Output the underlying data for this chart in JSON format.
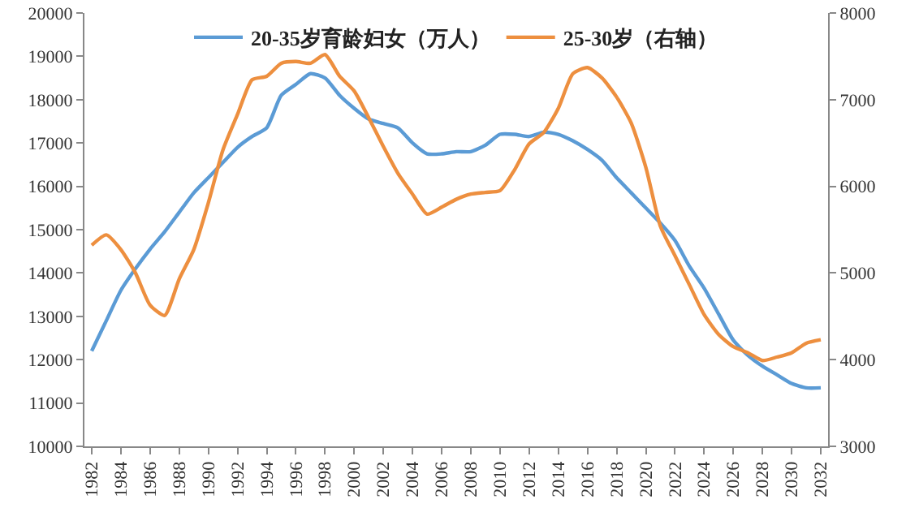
{
  "chart_data": {
    "type": "line",
    "x": [
      1982,
      1983,
      1984,
      1985,
      1986,
      1987,
      1988,
      1989,
      1990,
      1991,
      1992,
      1993,
      1994,
      1995,
      1996,
      1997,
      1998,
      1999,
      2000,
      2001,
      2002,
      2003,
      2004,
      2005,
      2006,
      2007,
      2008,
      2009,
      2010,
      2011,
      2012,
      2013,
      2014,
      2015,
      2016,
      2017,
      2018,
      2019,
      2020,
      2021,
      2022,
      2023,
      2024,
      2025,
      2026,
      2027,
      2028,
      2029,
      2030,
      2031,
      2032
    ],
    "series": [
      {
        "name": "20-35岁育龄妇女（万人）",
        "color": "#5b9bd5",
        "values": [
          12200,
          12900,
          13600,
          14100,
          14550,
          14950,
          15400,
          15850,
          16200,
          16550,
          16900,
          17150,
          17350,
          18100,
          18350,
          18600,
          18500,
          18100,
          17800,
          17550,
          17450,
          17350,
          17000,
          16750,
          16750,
          16800,
          16800,
          16950,
          17200,
          17200,
          17150,
          17250,
          17200,
          17050,
          16850,
          16600,
          16200,
          15850,
          15500,
          15150,
          14750,
          14150,
          13650,
          13050,
          12450,
          12100,
          11850,
          11650,
          11450,
          11350,
          11350
        ]
      },
      {
        "name": "25-30岁（右轴）",
        "color": "#ed8f3f",
        "axis": "y2",
        "values": [
          5320,
          5440,
          5270,
          5000,
          4630,
          4510,
          4930,
          5270,
          5810,
          6420,
          6830,
          7230,
          7270,
          7420,
          7440,
          7420,
          7520,
          7270,
          7100,
          6790,
          6460,
          6150,
          5910,
          5680,
          5760,
          5850,
          5910,
          5930,
          5950,
          6190,
          6490,
          6620,
          6900,
          7300,
          7370,
          7250,
          7030,
          6730,
          6220,
          5540,
          5200,
          4860,
          4520,
          4290,
          4150,
          4080,
          3990,
          4030,
          4080,
          4190,
          4230
        ]
      }
    ],
    "xlim": [
      1981.5,
      2032.5
    ],
    "xticks": [
      1982,
      1984,
      1986,
      1988,
      1990,
      1992,
      1994,
      1996,
      1998,
      2000,
      2002,
      2004,
      2006,
      2008,
      2010,
      2012,
      2014,
      2016,
      2018,
      2020,
      2022,
      2024,
      2026,
      2028,
      2030,
      2032
    ],
    "ylim": [
      10000,
      20000
    ],
    "yticks": [
      10000,
      11000,
      12000,
      13000,
      14000,
      15000,
      16000,
      17000,
      18000,
      19000,
      20000
    ],
    "y2lim": [
      3000,
      8000
    ],
    "y2ticks": [
      3000,
      4000,
      5000,
      6000,
      7000,
      8000
    ],
    "legend": "top",
    "grid": false,
    "marker": "none",
    "line_style": "solid"
  }
}
